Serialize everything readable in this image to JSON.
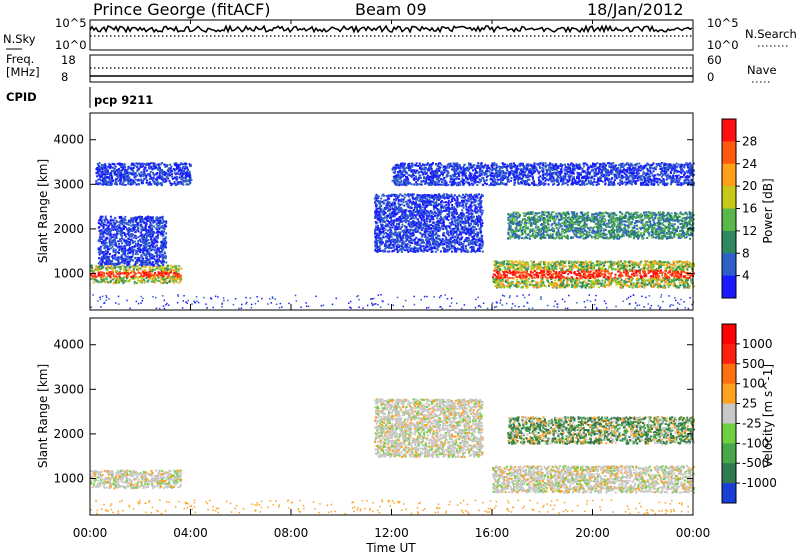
{
  "header": {
    "site": "Prince George (fitACF)",
    "beam": "Beam 09",
    "date": "18/Jan/2012"
  },
  "sky_panel": {
    "left_label": "N.Sky",
    "right_label": "N.Search",
    "left_ticks": [
      "10^5",
      "10^0"
    ],
    "right_ticks": [
      "10^5",
      "10^0"
    ]
  },
  "freq_panel": {
    "left_label_1": "Freq.",
    "left_label_2": "[MHz]",
    "left_ticks": [
      "18",
      "8"
    ],
    "right_ticks": [
      "60",
      "0"
    ],
    "right_label": "Nave"
  },
  "cpid": {
    "label": "CPID",
    "value": "pcp 9211"
  },
  "chart_data": [
    {
      "type": "heatmap",
      "title": "",
      "ylabel": "Slant Range [km]",
      "ylim": [
        180,
        4600
      ],
      "yticks": [
        1000,
        2000,
        3000,
        4000
      ],
      "xlim": [
        "00:00",
        "24:00"
      ],
      "colorbar_label": "Power [dB]",
      "colorbar_ticks": [
        "4",
        "8",
        "12",
        "16",
        "20",
        "24",
        "28"
      ],
      "colors": [
        "#1a1aff",
        "#2f5fc8",
        "#2c8a5e",
        "#5ab74a",
        "#c8c818",
        "#ff9f1a",
        "#ff5a10",
        "#ff1010"
      ],
      "echo_regions": [
        {
          "t_start": 0.0,
          "t_end": 3.6,
          "range_start": 800,
          "range_end": 1200,
          "level": "high"
        },
        {
          "t_start": 0.3,
          "t_end": 3.0,
          "range_start": 1200,
          "range_end": 2300,
          "level": "low"
        },
        {
          "t_start": 0.2,
          "t_end": 4.0,
          "range_start": 3000,
          "range_end": 3500,
          "level": "low"
        },
        {
          "t_start": 11.3,
          "t_end": 15.6,
          "range_start": 1500,
          "range_end": 2800,
          "level": "low"
        },
        {
          "t_start": 16.0,
          "t_end": 24.0,
          "range_start": 700,
          "range_end": 1300,
          "level": "high"
        },
        {
          "t_start": 16.6,
          "t_end": 24.0,
          "range_start": 1800,
          "range_end": 2400,
          "level": "medium"
        },
        {
          "t_start": 12.0,
          "t_end": 24.0,
          "range_start": 3000,
          "range_end": 3500,
          "level": "low"
        }
      ]
    },
    {
      "type": "heatmap",
      "title": "",
      "ylabel": "Slant Range [km]",
      "xlabel": "Time UT",
      "ylim": [
        180,
        4600
      ],
      "yticks": [
        1000,
        2000,
        3000,
        4000
      ],
      "xticks": [
        "00:00",
        "04:00",
        "08:00",
        "12:00",
        "16:00",
        "20:00",
        "00:00"
      ],
      "colorbar_label": "Velocity [m s^-1]",
      "colorbar_ticks": [
        "1000",
        "500",
        "100",
        "25",
        "-25",
        "-100",
        "-500",
        "-1000"
      ],
      "colors": [
        "#1a3fd6",
        "#2f7a4e",
        "#48a848",
        "#70d040",
        "#c8c8c8",
        "#ffa020",
        "#ff7010",
        "#ff2010",
        "#ff0000"
      ],
      "echo_regions": [
        {
          "t_start": 0.0,
          "t_end": 3.6,
          "range_start": 800,
          "range_end": 1200,
          "velocity": "near-zero"
        },
        {
          "t_start": 11.3,
          "t_end": 15.6,
          "range_start": 1500,
          "range_end": 2800,
          "velocity": "near-zero"
        },
        {
          "t_start": 16.0,
          "t_end": 24.0,
          "range_start": 700,
          "range_end": 1300,
          "velocity": "near-zero"
        },
        {
          "t_start": 16.6,
          "t_end": 24.0,
          "range_start": 1800,
          "range_end": 2400,
          "velocity": "positive-to-negative"
        }
      ]
    }
  ]
}
